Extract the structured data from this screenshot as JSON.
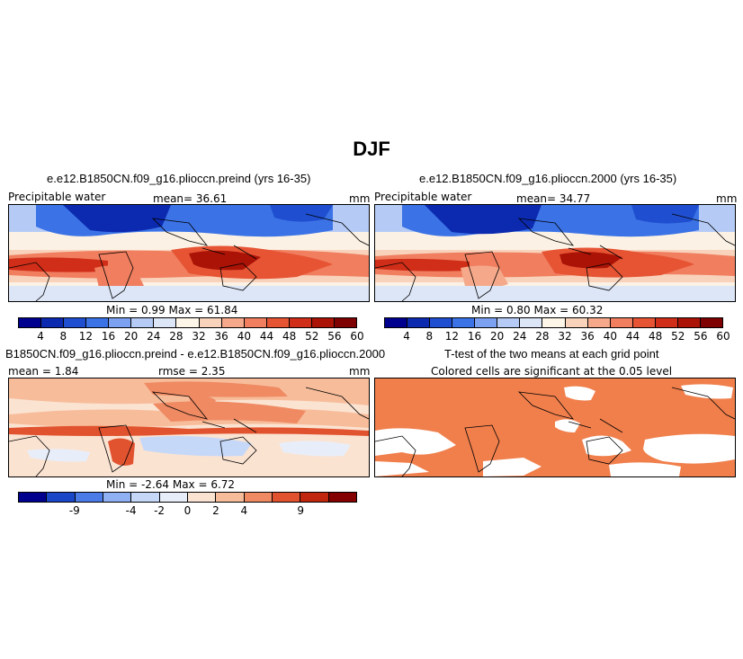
{
  "figure": {
    "title": "DJF"
  },
  "colors": {
    "abs_scale": [
      "#00008e",
      "#0c2ab0",
      "#1f4fd0",
      "#3b73e6",
      "#7ba1f0",
      "#b5cbf6",
      "#dde6f7",
      "#fdf6e8",
      "#f8d2bb",
      "#f5a98a",
      "#f07e5f",
      "#e65434",
      "#d02e18",
      "#aa1306",
      "#7e0000"
    ],
    "diff_scale": [
      "#00008e",
      "#1a47c8",
      "#4b7be6",
      "#8fb1f3",
      "#c6d8f8",
      "#e8eef9",
      "#fbe3d2",
      "#f7bd9b",
      "#ef8a63",
      "#e1532f",
      "#c1260f",
      "#840000"
    ],
    "signif": "#f07f4c"
  },
  "panels": {
    "preind": {
      "title": "e.e12.B1850CN.f09_g16.plioccn.preind (yrs 16-35)",
      "variable": "Precipitable water",
      "mean": "mean=   36.61",
      "units": "mm",
      "minmax": "Min =    0.99  Max =   61.84",
      "ticks": [
        "4",
        "8",
        "12",
        "16",
        "20",
        "24",
        "28",
        "32",
        "36",
        "40",
        "44",
        "48",
        "52",
        "56",
        "60"
      ]
    },
    "pi2000": {
      "title": "e.e12.B1850CN.f09_g16.plioccn.2000 (yrs 16-35)",
      "variable": "Precipitable water",
      "mean": "mean=   34.77",
      "units": "mm",
      "minmax": "Min =    0.80  Max =   60.32",
      "ticks": [
        "4",
        "8",
        "12",
        "16",
        "20",
        "24",
        "28",
        "32",
        "36",
        "40",
        "44",
        "48",
        "52",
        "56",
        "60"
      ]
    },
    "diff": {
      "title": "B1850CN.f09_g16.plioccn.preind - e.e12.B1850CN.f09_g16.plioccn.2000",
      "mean": "mean =   1.84",
      "rmse": "rmse =   2.35",
      "units": "mm",
      "minmax": "Min =   -2.64  Max =    6.72",
      "ticks": [
        "-9",
        "-4",
        "-2",
        "0",
        "2",
        "4",
        "9"
      ]
    },
    "ttest": {
      "title": "T-test of the two means at each grid point",
      "subtitle": "Colored cells are significant at the 0.05 level"
    }
  }
}
